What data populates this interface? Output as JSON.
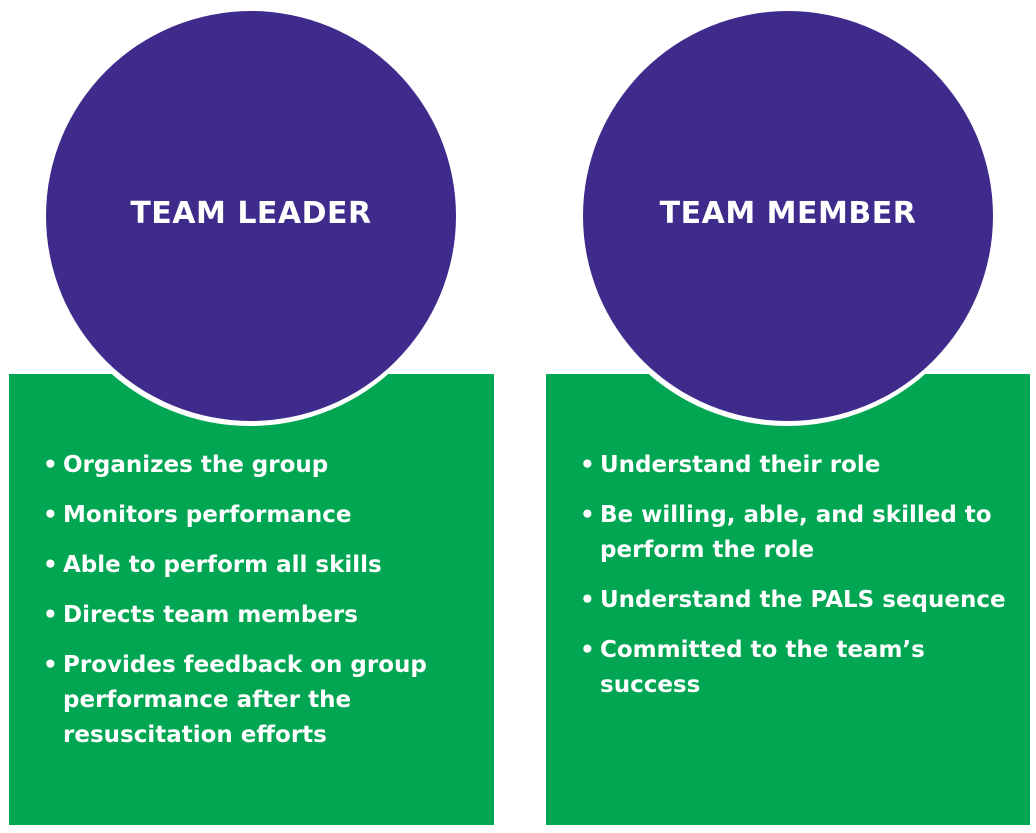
{
  "colors": {
    "circle": "#3f2b8c",
    "panel": "#00a651",
    "text": "#ffffff"
  },
  "leader": {
    "title": "TEAM LEADER",
    "items": [
      "Organizes the group",
      "Monitors performance",
      "Able to perform all skills",
      "Directs team members",
      "Provides feedback on group performance after the resuscitation efforts"
    ]
  },
  "member": {
    "title": "TEAM MEMBER",
    "items": [
      "Understand their role",
      "Be willing, able, and skilled to perform the role",
      "Understand the PALS sequence",
      "Committed to the team’s success"
    ]
  }
}
